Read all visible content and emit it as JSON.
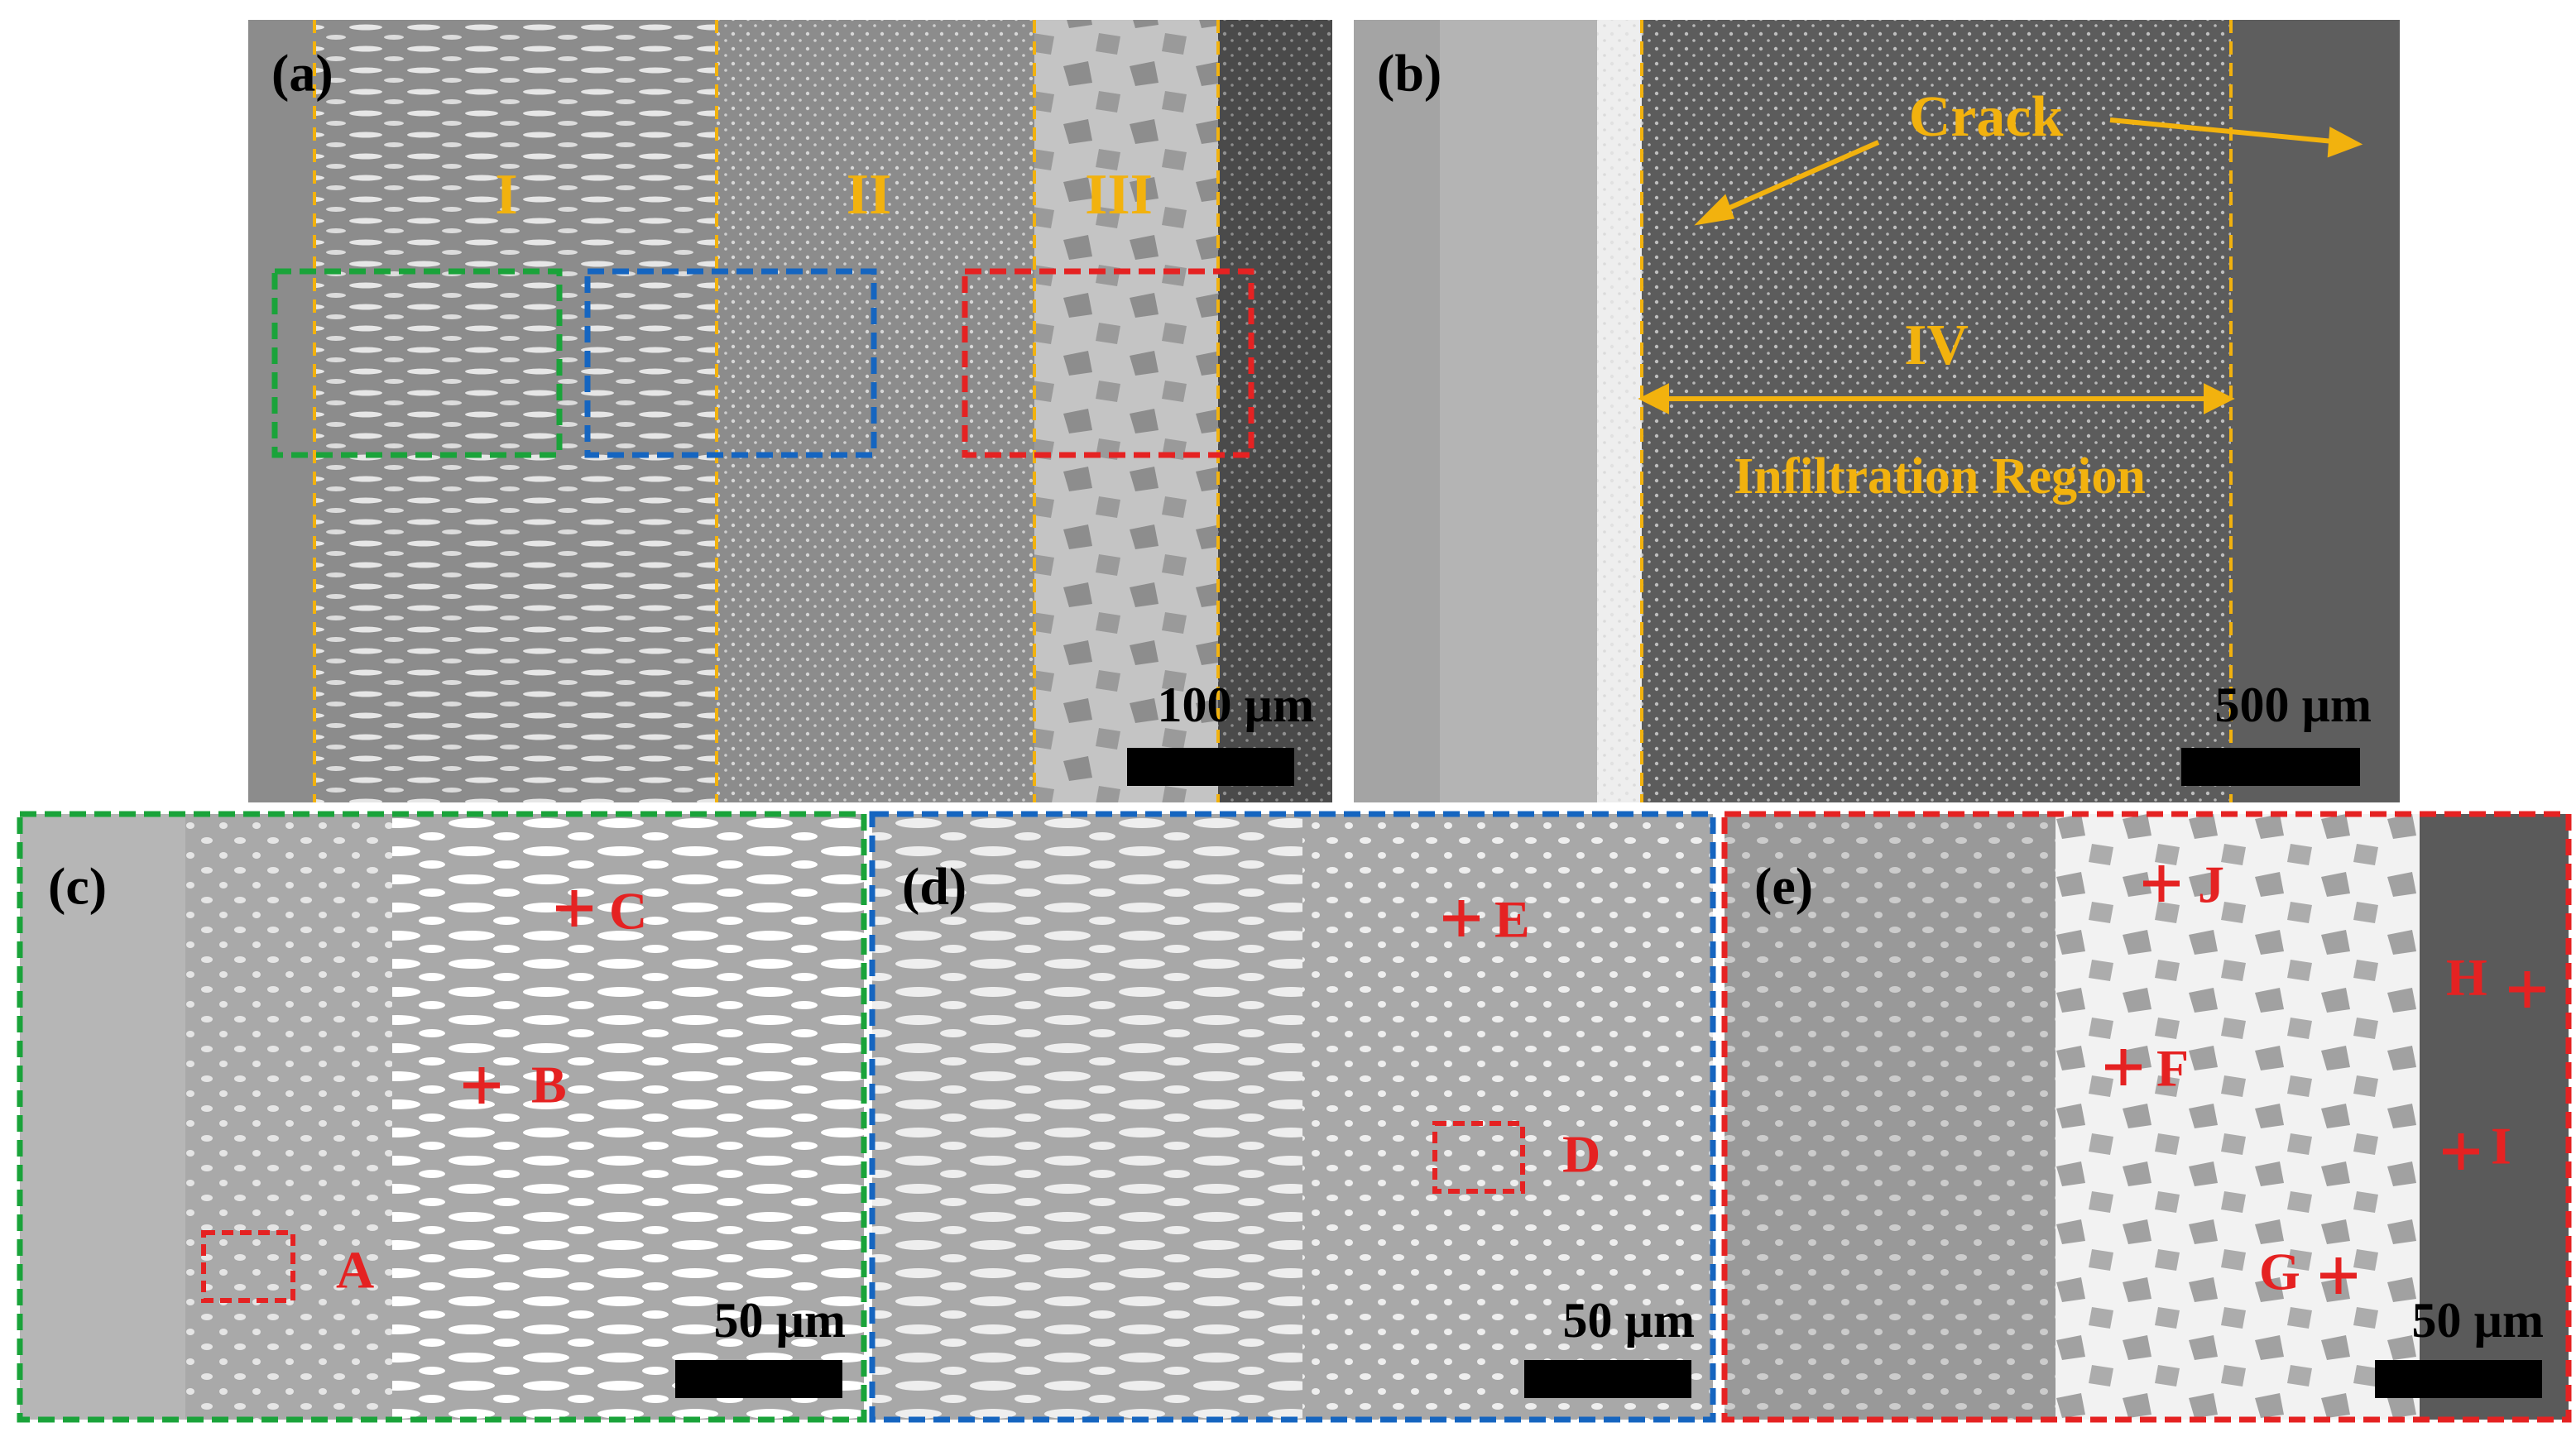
{
  "panels": [
    {
      "label": "(a)",
      "regions": [
        "I",
        "II",
        "III"
      ],
      "scale_bar": "100 µm"
    },
    {
      "label": "(b)",
      "crack": "Crack",
      "region": "IV",
      "region_name": "Infiltration Region",
      "scale_bar": "500 µm"
    },
    {
      "label": "(c)",
      "points": [
        "C",
        "B",
        "A"
      ],
      "scale_bar": "50 µm"
    },
    {
      "label": "(d)",
      "points": [
        "E",
        "D"
      ],
      "scale_bar": "50 µm"
    },
    {
      "label": "(e)",
      "points": [
        "J",
        "F",
        "H",
        "I",
        "G"
      ],
      "scale_bar": "50 µm"
    }
  ]
}
